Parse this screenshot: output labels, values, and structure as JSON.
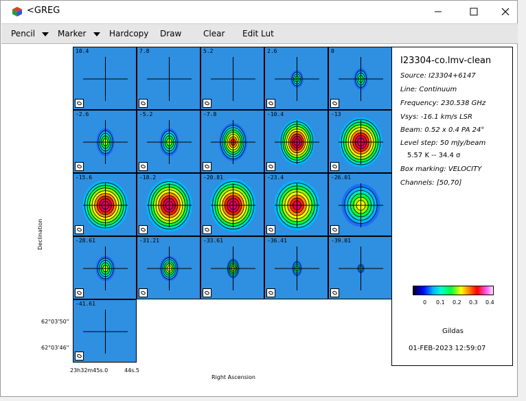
{
  "window": {
    "title": "<GREG",
    "controls": {
      "minimize": "minimize-icon",
      "maximize": "maximize-icon",
      "close": "close-icon"
    }
  },
  "menu": {
    "items": [
      {
        "label": "Pencil",
        "has_arrow": true
      },
      {
        "label": "Marker",
        "has_arrow": true
      },
      {
        "label": "Hardcopy",
        "has_arrow": false
      },
      {
        "label": "Draw",
        "has_arrow": false
      },
      {
        "label": "Clear",
        "has_arrow": false
      },
      {
        "label": "Edit Lut",
        "has_arrow": false
      }
    ]
  },
  "channel_map": {
    "panels": [
      {
        "velocity": "10.4",
        "peak": 0.0,
        "ellipse": [
          0,
          0
        ]
      },
      {
        "velocity": "7.8",
        "peak": 0.0,
        "ellipse": [
          0,
          0
        ]
      },
      {
        "velocity": "5.2",
        "peak": 0.0,
        "ellipse": [
          0,
          0
        ]
      },
      {
        "velocity": "2.6",
        "peak": 0.1,
        "ellipse": [
          0.1,
          0.14
        ]
      },
      {
        "velocity": "0",
        "peak": 0.12,
        "ellipse": [
          0.11,
          0.17
        ]
      },
      {
        "velocity": "-2.6",
        "peak": 0.15,
        "ellipse": [
          0.14,
          0.22
        ]
      },
      {
        "velocity": "-5.2",
        "peak": 0.15,
        "ellipse": [
          0.15,
          0.22
        ]
      },
      {
        "velocity": "-7.8",
        "peak": 0.3,
        "ellipse": [
          0.22,
          0.3
        ]
      },
      {
        "velocity": "-10.4",
        "peak": 0.35,
        "ellipse": [
          0.28,
          0.36
        ]
      },
      {
        "velocity": "-13",
        "peak": 0.35,
        "ellipse": [
          0.34,
          0.4
        ]
      },
      {
        "velocity": "-15.6",
        "peak": 0.38,
        "ellipse": [
          0.36,
          0.4
        ]
      },
      {
        "velocity": "-18.2",
        "peak": 0.38,
        "ellipse": [
          0.36,
          0.42
        ]
      },
      {
        "velocity": "-20.81",
        "peak": 0.38,
        "ellipse": [
          0.36,
          0.42
        ]
      },
      {
        "velocity": "-23.4",
        "peak": 0.32,
        "ellipse": [
          0.36,
          0.4
        ]
      },
      {
        "velocity": "-26.01",
        "peak": 0.22,
        "ellipse": [
          0.3,
          0.34
        ]
      },
      {
        "velocity": "-28.61",
        "peak": 0.17,
        "ellipse": [
          0.15,
          0.2
        ]
      },
      {
        "velocity": "-31.21",
        "peak": 0.18,
        "ellipse": [
          0.15,
          0.2
        ]
      },
      {
        "velocity": "-33.61",
        "peak": 0.2,
        "ellipse": [
          0.1,
          0.16
        ]
      },
      {
        "velocity": "-36.41",
        "peak": 0.12,
        "ellipse": [
          0.08,
          0.13
        ]
      },
      {
        "velocity": "-39.01",
        "peak": 0.05,
        "ellipse": [
          0.06,
          0.08
        ]
      },
      {
        "velocity": "-41.61",
        "peak": 0.0,
        "ellipse": [
          0,
          0
        ]
      }
    ],
    "axes": {
      "ylabel": "Declination",
      "xlabel": "Right Ascension",
      "y_ticks": [
        "62°03'50\"",
        "62°03'46\""
      ],
      "x_ticks": [
        "23h32m45s.0",
        "44s.5"
      ]
    }
  },
  "info": {
    "name": "I23304-co.lmv-clean",
    "source": "Source: I23304+6147",
    "line": "Line: Continuum",
    "frequency": "Frequency: 230.538 GHz",
    "vsys": "Vsys: -16.1 km/s LSR",
    "beam": "Beam: 0.52 x 0.4 PA 24°",
    "level_step": "Level step: 50 mJy/beam",
    "level_step2": "5.57 K   --   34.4 σ",
    "box_marking": "Box marking: VELOCITY",
    "channels": "Channels: [50,70]",
    "colorbar_ticks": [
      "0",
      "0.1",
      "0.2",
      "0.3",
      "0.4"
    ],
    "footer_name": "Gildas",
    "timestamp": "01-FEB-2023 12:59:07"
  }
}
